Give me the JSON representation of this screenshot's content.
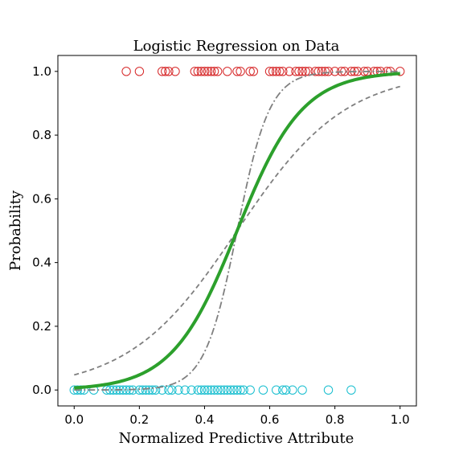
{
  "chart_data": {
    "type": "scatter",
    "title": "Logistic Regression on Data",
    "xlabel": "Normalized Predictive Attribute",
    "ylabel": "Probability",
    "xlim": [
      -0.05,
      1.05
    ],
    "ylim": [
      -0.05,
      1.05
    ],
    "xticks": [
      "0.0",
      "0.2",
      "0.4",
      "0.6",
      "0.8",
      "1.0"
    ],
    "yticks": [
      "0.0",
      "0.2",
      "0.4",
      "0.6",
      "0.8",
      "1.0"
    ],
    "grid": false,
    "colors": {
      "positive": "#d62728",
      "negative": "#17becf",
      "fit": "#2ca02c",
      "bounds": "#7f7f7f"
    },
    "curves": [
      {
        "style": "solid",
        "midpoint": 0.5,
        "slope": 10
      },
      {
        "style": "dashed",
        "midpoint": 0.5,
        "slope": 6
      },
      {
        "style": "dashdot",
        "midpoint": 0.5,
        "slope": 20
      }
    ],
    "points_y1": [
      0.16,
      0.2,
      0.27,
      0.28,
      0.29,
      0.31,
      0.37,
      0.38,
      0.39,
      0.4,
      0.41,
      0.42,
      0.43,
      0.44,
      0.47,
      0.5,
      0.51,
      0.54,
      0.55,
      0.6,
      0.61,
      0.62,
      0.63,
      0.64,
      0.66,
      0.68,
      0.69,
      0.7,
      0.71,
      0.72,
      0.74,
      0.75,
      0.76,
      0.77,
      0.78,
      0.8,
      0.82,
      0.83,
      0.85,
      0.86,
      0.87,
      0.89,
      0.9,
      0.92,
      0.93,
      0.94,
      0.96,
      0.97,
      1.0
    ],
    "points_y0": [
      0.0,
      0.01,
      0.02,
      0.03,
      0.06,
      0.1,
      0.11,
      0.12,
      0.13,
      0.14,
      0.15,
      0.16,
      0.17,
      0.18,
      0.2,
      0.21,
      0.22,
      0.23,
      0.24,
      0.25,
      0.27,
      0.29,
      0.3,
      0.32,
      0.34,
      0.36,
      0.38,
      0.39,
      0.4,
      0.41,
      0.42,
      0.43,
      0.44,
      0.45,
      0.46,
      0.47,
      0.48,
      0.49,
      0.5,
      0.51,
      0.52,
      0.54,
      0.58,
      0.62,
      0.64,
      0.65,
      0.67,
      0.7,
      0.78,
      0.85
    ]
  }
}
